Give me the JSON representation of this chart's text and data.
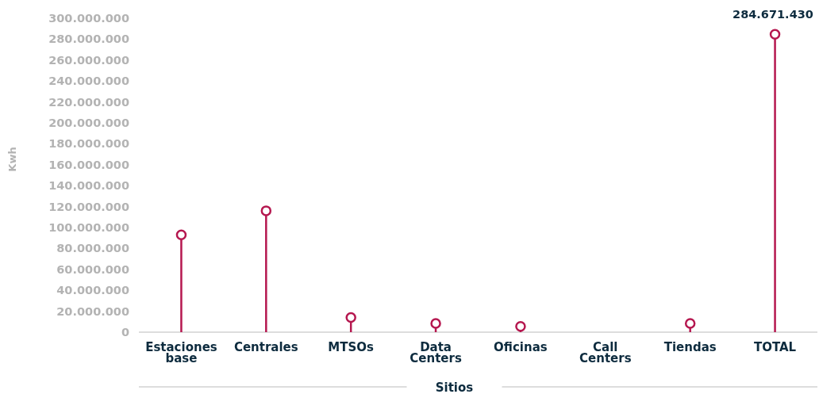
{
  "chart_data": {
    "type": "lollipop",
    "xlabel": "Sitios",
    "ylabel": "Kwh",
    "categories": [
      "Estaciones base",
      "Centrales",
      "MTSOs",
      "Data Centers",
      "Oficinas",
      "Call Centers",
      "Tiendas",
      "TOTAL"
    ],
    "values": [
      93000000,
      116000000,
      14000000,
      8300000,
      5500000,
      null,
      8300000,
      284671430
    ],
    "value_labels": [
      null,
      null,
      null,
      null,
      null,
      null,
      null,
      "284.671.430"
    ],
    "color": "#b5174f",
    "marker": "circle",
    "ylim": [
      0,
      300000000
    ],
    "yticks": [
      {
        "value": 0,
        "label": "0"
      },
      {
        "value": 20000000,
        "label": "20.000.000"
      },
      {
        "value": 40000000,
        "label": "40.000.000"
      },
      {
        "value": 60000000,
        "label": "60.000.000"
      },
      {
        "value": 80000000,
        "label": "80.000.000"
      },
      {
        "value": 100000000,
        "label": "100.000.000"
      },
      {
        "value": 120000000,
        "label": "120.000.000"
      },
      {
        "value": 140000000,
        "label": "140.000.000"
      },
      {
        "value": 160000000,
        "label": "160.000.000"
      },
      {
        "value": 180000000,
        "label": "180.000.000"
      },
      {
        "value": 200000000,
        "label": "200.000.000"
      },
      {
        "value": 220000000,
        "label": "220.000.000"
      },
      {
        "value": 240000000,
        "label": "240.000.000"
      },
      {
        "value": 260000000,
        "label": "260.000.000"
      },
      {
        "value": 280000000,
        "label": "280.000.000"
      },
      {
        "value": 300000000,
        "label": "300.000.000"
      }
    ],
    "grid": false
  }
}
